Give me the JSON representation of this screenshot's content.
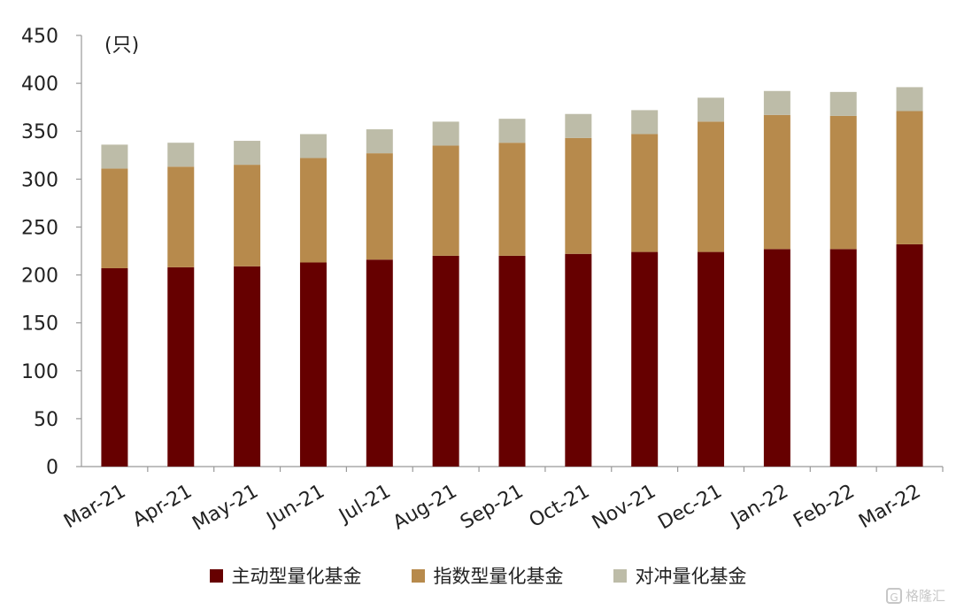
{
  "chart_data": {
    "type": "bar",
    "stacked": true,
    "unit": "(只)",
    "categories": [
      "Mar-21",
      "Apr-21",
      "May-21",
      "Jun-21",
      "Jul-21",
      "Aug-21",
      "Sep-21",
      "Oct-21",
      "Nov-21",
      "Dec-21",
      "Jan-22",
      "Feb-22",
      "Mar-22"
    ],
    "series": [
      {
        "name": "主动型量化基金",
        "color": "#660000",
        "values": [
          207,
          208,
          209,
          213,
          216,
          220,
          220,
          222,
          224,
          224,
          227,
          227,
          232
        ]
      },
      {
        "name": "指数型量化基金",
        "color": "#B78A4C",
        "values": [
          104,
          105,
          106,
          109,
          111,
          115,
          118,
          121,
          123,
          136,
          140,
          139,
          139
        ]
      },
      {
        "name": "对冲量化基金",
        "color": "#BDBCA8",
        "values": [
          25,
          25,
          25,
          25,
          25,
          25,
          25,
          25,
          25,
          25,
          25,
          25,
          25
        ]
      }
    ],
    "ylim": [
      0,
      450
    ],
    "yticks": [
      "0",
      "50",
      "100",
      "150",
      "200",
      "250",
      "300",
      "350",
      "400",
      "450"
    ],
    "legend_position": "bottom",
    "grid": false
  },
  "watermark": {
    "text": "格隆汇",
    "icon": "G"
  }
}
